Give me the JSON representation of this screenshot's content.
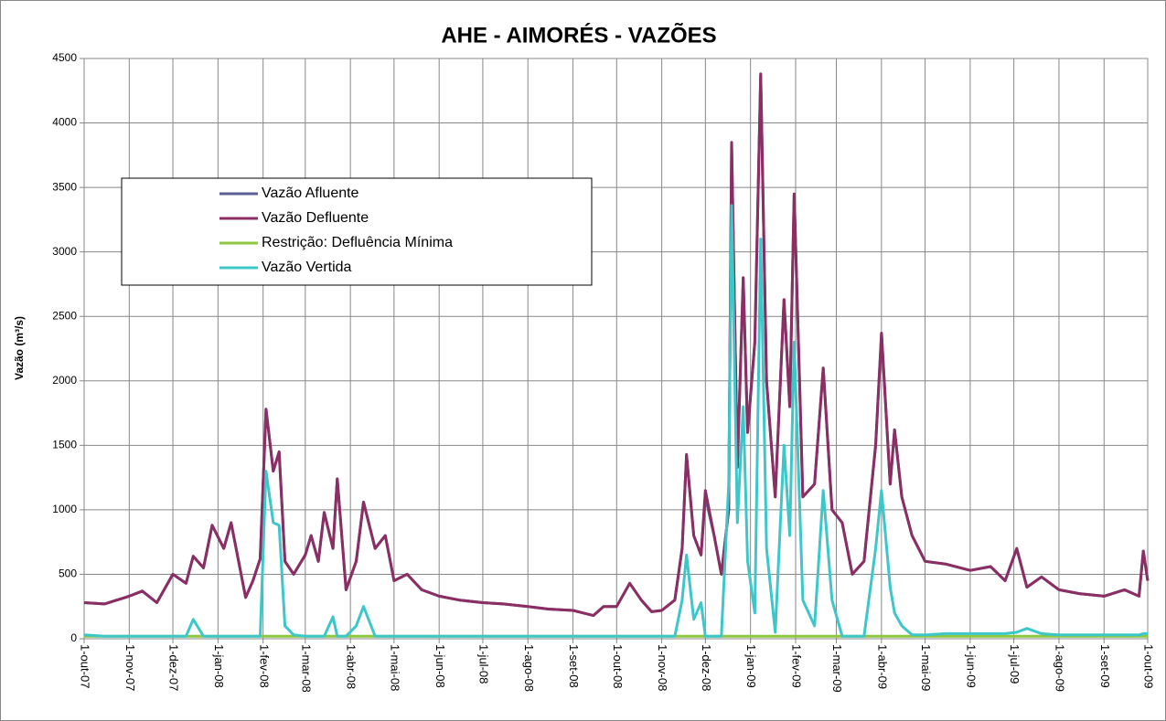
{
  "chart_data": {
    "type": "line",
    "title": "AHE - AIMORÉS - VAZÕES",
    "y_label": "Vazão (m³/s)",
    "x": [
      "2007-10-01",
      "2007-10-15",
      "2007-11-01",
      "2007-11-10",
      "2007-11-20",
      "2007-12-01",
      "2007-12-10",
      "2007-12-15",
      "2007-12-22",
      "2007-12-28",
      "2008-01-05",
      "2008-01-10",
      "2008-01-20",
      "2008-01-25",
      "2008-01-30",
      "2008-02-03",
      "2008-02-08",
      "2008-02-12",
      "2008-02-16",
      "2008-02-22",
      "2008-03-01",
      "2008-03-05",
      "2008-03-10",
      "2008-03-14",
      "2008-03-20",
      "2008-03-23",
      "2008-03-29",
      "2008-04-05",
      "2008-04-10",
      "2008-04-18",
      "2008-04-25",
      "2008-05-01",
      "2008-05-10",
      "2008-05-20",
      "2008-06-01",
      "2008-06-15",
      "2008-07-01",
      "2008-07-15",
      "2008-08-01",
      "2008-08-15",
      "2008-09-01",
      "2008-09-15",
      "2008-09-22",
      "2008-10-01",
      "2008-10-10",
      "2008-10-18",
      "2008-10-25",
      "2008-11-01",
      "2008-11-10",
      "2008-11-15",
      "2008-11-18",
      "2008-11-23",
      "2008-11-28",
      "2008-12-01",
      "2008-12-07",
      "2008-12-12",
      "2008-12-17",
      "2008-12-19",
      "2008-12-23",
      "2008-12-27",
      "2008-12-30",
      "2009-01-04",
      "2009-01-08",
      "2009-01-12",
      "2009-01-18",
      "2009-01-24",
      "2009-01-28",
      "2009-01-31",
      "2009-02-06",
      "2009-02-14",
      "2009-02-20",
      "2009-02-26",
      "2009-03-05",
      "2009-03-12",
      "2009-03-20",
      "2009-03-28",
      "2009-04-01",
      "2009-04-07",
      "2009-04-10",
      "2009-04-15",
      "2009-04-22",
      "2009-05-01",
      "2009-05-15",
      "2009-06-01",
      "2009-06-15",
      "2009-06-25",
      "2009-07-03",
      "2009-07-10",
      "2009-07-20",
      "2009-08-01",
      "2009-08-15",
      "2009-09-01",
      "2009-09-15",
      "2009-09-25",
      "2009-09-28",
      "2009-10-01"
    ],
    "series": [
      {
        "name": "Vazão Afluente",
        "color": "#5b5f97",
        "values": [
          280,
          270,
          330,
          370,
          280,
          500,
          430,
          640,
          550,
          880,
          700,
          900,
          320,
          450,
          620,
          1780,
          1300,
          1450,
          600,
          500,
          650,
          800,
          600,
          980,
          700,
          1240,
          380,
          600,
          1060,
          700,
          800,
          450,
          500,
          380,
          330,
          300,
          280,
          270,
          250,
          230,
          220,
          180,
          250,
          250,
          430,
          300,
          210,
          220,
          300,
          700,
          1420,
          800,
          650,
          1100,
          800,
          500,
          1000,
          3840,
          1330,
          2800,
          1600,
          2300,
          4380,
          2000,
          1100,
          2630,
          1800,
          3450,
          1100,
          1200,
          2100,
          1000,
          900,
          500,
          600,
          1500,
          2370,
          1200,
          1620,
          1100,
          800,
          600,
          580,
          530,
          560,
          450,
          700,
          400,
          480,
          380,
          350,
          330,
          380,
          330,
          680,
          450
        ]
      },
      {
        "name": "Vazão Defluente",
        "color": "#8b2e63",
        "values": [
          280,
          270,
          330,
          370,
          280,
          500,
          430,
          640,
          550,
          880,
          700,
          900,
          320,
          450,
          620,
          1780,
          1300,
          1450,
          600,
          500,
          650,
          800,
          600,
          980,
          700,
          1240,
          380,
          600,
          1060,
          700,
          800,
          450,
          500,
          380,
          330,
          300,
          280,
          270,
          250,
          230,
          220,
          180,
          250,
          250,
          430,
          300,
          210,
          220,
          300,
          700,
          1430,
          800,
          650,
          1150,
          800,
          500,
          1000,
          3850,
          1330,
          2800,
          1600,
          2300,
          4380,
          2000,
          1100,
          2630,
          1800,
          3450,
          1100,
          1200,
          2100,
          1000,
          900,
          500,
          600,
          1500,
          2370,
          1200,
          1620,
          1100,
          800,
          600,
          580,
          530,
          560,
          450,
          700,
          400,
          480,
          380,
          350,
          330,
          380,
          330,
          680,
          450
        ]
      },
      {
        "name": "Restrição: Defluência Mínima",
        "color": "#8dc63f",
        "x": [
          "2007-10-01",
          "2009-10-01"
        ],
        "values": [
          20,
          20
        ]
      },
      {
        "name": "Vazão Vertida",
        "color": "#3ec7c9",
        "values": [
          30,
          20,
          20,
          20,
          20,
          20,
          20,
          150,
          20,
          20,
          20,
          20,
          20,
          20,
          20,
          1300,
          900,
          880,
          100,
          30,
          20,
          20,
          20,
          20,
          170,
          20,
          20,
          100,
          250,
          20,
          20,
          20,
          20,
          20,
          20,
          20,
          20,
          20,
          20,
          20,
          20,
          20,
          20,
          20,
          20,
          20,
          20,
          20,
          20,
          300,
          650,
          150,
          280,
          20,
          20,
          20,
          1200,
          3360,
          900,
          1800,
          600,
          200,
          3100,
          700,
          50,
          1500,
          800,
          2300,
          300,
          100,
          1150,
          300,
          20,
          20,
          20,
          700,
          1150,
          400,
          200,
          100,
          30,
          30,
          40,
          40,
          40,
          40,
          50,
          80,
          40,
          30,
          30,
          30,
          30,
          30,
          40,
          40
        ]
      }
    ],
    "xlim": [
      "2007-10-01",
      "2009-10-01"
    ],
    "xticks": [
      {
        "value": "2007-10-01",
        "label": "1-out-07"
      },
      {
        "value": "2007-11-01",
        "label": "1-nov-07"
      },
      {
        "value": "2007-12-01",
        "label": "1-dez-07"
      },
      {
        "value": "2008-01-01",
        "label": "1-jan-08"
      },
      {
        "value": "2008-02-01",
        "label": "1-fev-08"
      },
      {
        "value": "2008-03-01",
        "label": "1-mar-08"
      },
      {
        "value": "2008-04-01",
        "label": "1-abr-08"
      },
      {
        "value": "2008-05-01",
        "label": "1-mai-08"
      },
      {
        "value": "2008-06-01",
        "label": "1-jun-08"
      },
      {
        "value": "2008-07-01",
        "label": "1-jul-08"
      },
      {
        "value": "2008-08-01",
        "label": "1-ago-08"
      },
      {
        "value": "2008-09-01",
        "label": "1-set-08"
      },
      {
        "value": "2008-10-01",
        "label": "1-out-08"
      },
      {
        "value": "2008-11-01",
        "label": "1-nov-08"
      },
      {
        "value": "2008-12-01",
        "label": "1-dez-08"
      },
      {
        "value": "2009-01-01",
        "label": "1-jan-09"
      },
      {
        "value": "2009-02-01",
        "label": "1-fev-09"
      },
      {
        "value": "2009-03-01",
        "label": "1-mar-09"
      },
      {
        "value": "2009-04-01",
        "label": "1-abr-09"
      },
      {
        "value": "2009-05-01",
        "label": "1-mai-09"
      },
      {
        "value": "2009-06-01",
        "label": "1-jun-09"
      },
      {
        "value": "2009-07-01",
        "label": "1-jul-09"
      },
      {
        "value": "2009-08-01",
        "label": "1-ago-09"
      },
      {
        "value": "2009-09-01",
        "label": "1-set-09"
      },
      {
        "value": "2009-10-01",
        "label": "1-out-09"
      }
    ],
    "ylim": [
      0,
      4500
    ],
    "yticks": [
      0,
      500,
      1000,
      1500,
      2000,
      2500,
      3000,
      3500,
      4000,
      4500
    ],
    "grid": true
  }
}
